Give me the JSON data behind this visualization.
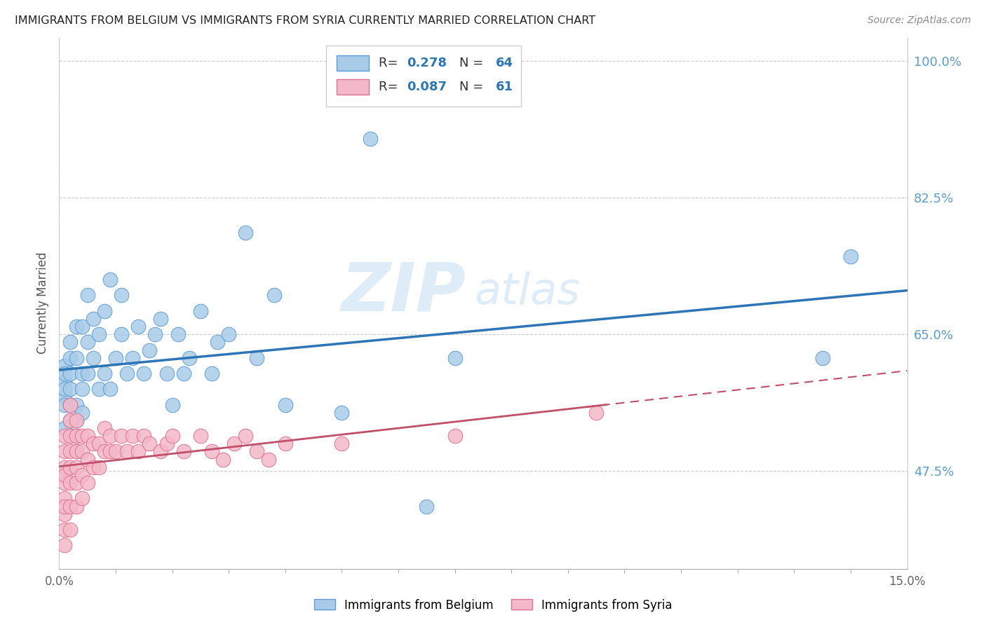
{
  "title": "IMMIGRANTS FROM BELGIUM VS IMMIGRANTS FROM SYRIA CURRENTLY MARRIED CORRELATION CHART",
  "source": "Source: ZipAtlas.com",
  "ylabel": "Currently Married",
  "belgium_R": 0.278,
  "belgium_N": 64,
  "syria_R": 0.087,
  "syria_N": 61,
  "belgium_color": "#a8cce8",
  "belgium_edge_color": "#5b9bd5",
  "belgium_line_color": "#2e75b6",
  "syria_color": "#f4b8c8",
  "syria_edge_color": "#e07090",
  "syria_line_color": "#c0506a",
  "watermark_zip": "ZIP",
  "watermark_atlas": "atlas",
  "background_color": "#ffffff",
  "xlim": [
    0.0,
    0.15
  ],
  "ylim": [
    0.35,
    1.03
  ],
  "ytick_positions": [
    0.475,
    0.65,
    0.825,
    1.0
  ],
  "ytick_display": [
    "47.5%",
    "65.0%",
    "82.5%",
    "100.0%"
  ],
  "belgium_x": [
    0.001,
    0.001,
    0.001,
    0.001,
    0.001,
    0.001,
    0.001,
    0.002,
    0.002,
    0.002,
    0.002,
    0.002,
    0.002,
    0.002,
    0.003,
    0.003,
    0.003,
    0.003,
    0.003,
    0.003,
    0.004,
    0.004,
    0.004,
    0.004,
    0.005,
    0.005,
    0.005,
    0.006,
    0.006,
    0.007,
    0.007,
    0.008,
    0.008,
    0.009,
    0.009,
    0.01,
    0.011,
    0.011,
    0.012,
    0.013,
    0.014,
    0.015,
    0.016,
    0.017,
    0.018,
    0.019,
    0.02,
    0.021,
    0.022,
    0.023,
    0.025,
    0.027,
    0.028,
    0.03,
    0.033,
    0.035,
    0.038,
    0.04,
    0.05,
    0.055,
    0.065,
    0.07,
    0.135,
    0.14
  ],
  "belgium_y": [
    0.57,
    0.59,
    0.61,
    0.53,
    0.56,
    0.58,
    0.6,
    0.52,
    0.54,
    0.56,
    0.58,
    0.6,
    0.62,
    0.64,
    0.5,
    0.52,
    0.54,
    0.56,
    0.62,
    0.66,
    0.55,
    0.58,
    0.6,
    0.66,
    0.6,
    0.64,
    0.7,
    0.62,
    0.67,
    0.58,
    0.65,
    0.6,
    0.68,
    0.58,
    0.72,
    0.62,
    0.65,
    0.7,
    0.6,
    0.62,
    0.66,
    0.6,
    0.63,
    0.65,
    0.67,
    0.6,
    0.56,
    0.65,
    0.6,
    0.62,
    0.68,
    0.6,
    0.64,
    0.65,
    0.78,
    0.62,
    0.7,
    0.56,
    0.55,
    0.9,
    0.43,
    0.62,
    0.62,
    0.75
  ],
  "syria_x": [
    0.001,
    0.001,
    0.001,
    0.001,
    0.001,
    0.001,
    0.001,
    0.001,
    0.001,
    0.001,
    0.002,
    0.002,
    0.002,
    0.002,
    0.002,
    0.002,
    0.002,
    0.002,
    0.003,
    0.003,
    0.003,
    0.003,
    0.003,
    0.003,
    0.004,
    0.004,
    0.004,
    0.004,
    0.005,
    0.005,
    0.005,
    0.006,
    0.006,
    0.007,
    0.007,
    0.008,
    0.008,
    0.009,
    0.009,
    0.01,
    0.011,
    0.012,
    0.013,
    0.014,
    0.015,
    0.016,
    0.018,
    0.019,
    0.02,
    0.022,
    0.025,
    0.027,
    0.029,
    0.031,
    0.033,
    0.035,
    0.037,
    0.04,
    0.05,
    0.07,
    0.095
  ],
  "syria_y": [
    0.38,
    0.4,
    0.42,
    0.44,
    0.46,
    0.48,
    0.5,
    0.52,
    0.43,
    0.47,
    0.4,
    0.43,
    0.46,
    0.48,
    0.5,
    0.52,
    0.54,
    0.56,
    0.43,
    0.46,
    0.48,
    0.5,
    0.52,
    0.54,
    0.44,
    0.47,
    0.5,
    0.52,
    0.46,
    0.49,
    0.52,
    0.48,
    0.51,
    0.48,
    0.51,
    0.5,
    0.53,
    0.5,
    0.52,
    0.5,
    0.52,
    0.5,
    0.52,
    0.5,
    0.52,
    0.51,
    0.5,
    0.51,
    0.52,
    0.5,
    0.52,
    0.5,
    0.49,
    0.51,
    0.52,
    0.5,
    0.49,
    0.51,
    0.51,
    0.52,
    0.55
  ]
}
